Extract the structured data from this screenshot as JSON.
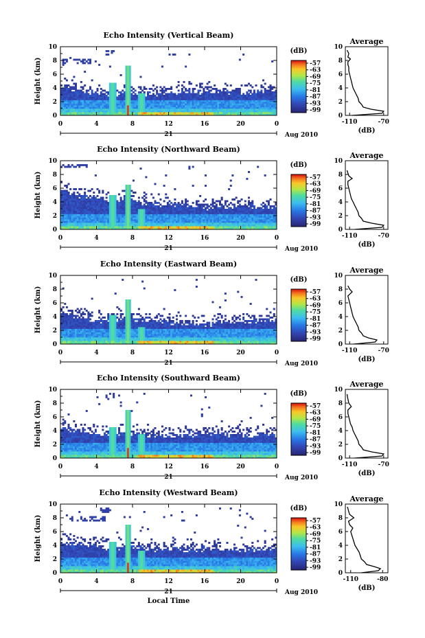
{
  "chart_data": [
    {
      "type": "heatmap",
      "title": "Echo Intensity (Vertical Beam)",
      "ylabel": "Height (km)",
      "ylim": [
        0,
        10
      ],
      "xlim": [
        0,
        24
      ],
      "x_ticks": [
        "0",
        "4",
        "8",
        "12",
        "16",
        "20",
        "0"
      ],
      "day_label": "21",
      "date_label": "Aug 2010",
      "colorbar": {
        "unit": "(dB)",
        "ticks": [
          "-57",
          "-63",
          "-69",
          "-75",
          "-81",
          "-87",
          "-93",
          "-99"
        ]
      },
      "features": {
        "tops": [
          4.2,
          4.0,
          3.8,
          3.5,
          3.3,
          3.1,
          3.0,
          3.4,
          3.3,
          3.2,
          3.1,
          3.2,
          3.3,
          3.3,
          3.4,
          3.5,
          3.5,
          3.5,
          3.5,
          3.5,
          3.4,
          3.4,
          3.4,
          3.5,
          3.5
        ],
        "spikes": [
          {
            "x": 5.8,
            "h": 4.8
          },
          {
            "x": 7.5,
            "h": 7.2
          },
          {
            "x": 9.0,
            "h": 3.3
          }
        ],
        "clouds": [
          [
            5,
            9.5,
            6,
            8.8
          ],
          [
            0,
            8.2,
            4,
            7.6
          ]
        ]
      },
      "profile": {
        "title": "Average",
        "xlabel": "(dB)",
        "x_ticks": [
          "-110",
          "-70"
        ],
        "xlim": [
          -115,
          -65
        ],
        "ylim": [
          0,
          10
        ],
        "points": [
          [
            -107,
            0
          ],
          [
            -72,
            0.3
          ],
          [
            -70,
            0.6
          ],
          [
            -85,
            0.9
          ],
          [
            -94,
            1.2
          ],
          [
            -96,
            1.6
          ],
          [
            -99,
            2.0
          ],
          [
            -100,
            2.5
          ],
          [
            -102,
            3.0
          ],
          [
            -104,
            3.5
          ],
          [
            -106,
            4.0
          ],
          [
            -107,
            4.5
          ],
          [
            -108,
            5.0
          ],
          [
            -109,
            5.5
          ],
          [
            -110,
            6.0
          ],
          [
            -111,
            6.5
          ],
          [
            -111,
            7.0
          ],
          [
            -112,
            7.4
          ],
          [
            -112,
            7.8
          ],
          [
            -109,
            8.2
          ],
          [
            -112,
            8.5
          ],
          [
            -111,
            9.0
          ],
          [
            -113,
            9.5
          ]
        ]
      }
    },
    {
      "type": "heatmap",
      "title": "Echo Intensity (Northward Beam)",
      "ylabel": "Height (km)",
      "ylim": [
        0,
        10
      ],
      "xlim": [
        0,
        24
      ],
      "x_ticks": [
        "0",
        "4",
        "8",
        "12",
        "16",
        "20",
        "0"
      ],
      "day_label": "21",
      "date_label": "Aug 2010",
      "colorbar": {
        "unit": "(dB)",
        "ticks": [
          "-57",
          "-63",
          "-69",
          "-75",
          "-81",
          "-87",
          "-93",
          "-99"
        ]
      },
      "features": {
        "tops": [
          5.8,
          5.3,
          5.0,
          4.8,
          4.6,
          4.2,
          4.0,
          4.5,
          4.3,
          4.0,
          3.8,
          3.7,
          3.6,
          3.5,
          3.5,
          3.4,
          3.3,
          3.2,
          3.2,
          3.3,
          3.4,
          3.4,
          3.3,
          3.3,
          3.4
        ],
        "spikes": [
          {
            "x": 5.8,
            "h": 5.0
          },
          {
            "x": 7.5,
            "h": 6.5
          },
          {
            "x": 9.0,
            "h": 3.0
          }
        ],
        "clouds": [
          [
            0,
            9.6,
            3,
            9.0
          ]
        ]
      },
      "profile": {
        "title": "Average",
        "xlabel": "(dB)",
        "x_ticks": [
          "-110",
          "-70"
        ],
        "xlim": [
          -115,
          -65
        ],
        "ylim": [
          0,
          10
        ],
        "points": [
          [
            -104,
            0
          ],
          [
            -72,
            0.3
          ],
          [
            -70,
            0.6
          ],
          [
            -84,
            0.9
          ],
          [
            -94,
            1.2
          ],
          [
            -96,
            1.6
          ],
          [
            -99,
            2.0
          ],
          [
            -100,
            2.5
          ],
          [
            -102,
            3.0
          ],
          [
            -104,
            3.5
          ],
          [
            -106,
            4.0
          ],
          [
            -108,
            4.5
          ],
          [
            -109,
            5.0
          ],
          [
            -110,
            5.5
          ],
          [
            -111,
            6.0
          ],
          [
            -112,
            6.5
          ],
          [
            -112,
            7.0
          ],
          [
            -107,
            7.4
          ],
          [
            -111,
            7.8
          ],
          [
            -112,
            8.2
          ],
          [
            -113,
            8.6
          ]
        ]
      }
    },
    {
      "type": "heatmap",
      "title": "Echo Intensity (Eastward Beam)",
      "ylabel": "Height (km)",
      "ylim": [
        0,
        10
      ],
      "xlim": [
        0,
        24
      ],
      "x_ticks": [
        "0",
        "4",
        "8",
        "12",
        "16",
        "20",
        "0"
      ],
      "day_label": "21",
      "date_label": "Aug 2010",
      "colorbar": {
        "unit": "(dB)",
        "ticks": [
          "-57",
          "-63",
          "-69",
          "-75",
          "-81",
          "-87",
          "-93",
          "-99"
        ]
      },
      "features": {
        "tops": [
          4.6,
          4.3,
          4.0,
          3.8,
          3.6,
          3.4,
          3.3,
          4.0,
          3.8,
          3.6,
          3.4,
          3.3,
          3.2,
          3.1,
          3.0,
          3.0,
          3.0,
          3.0,
          3.1,
          3.2,
          3.3,
          3.4,
          3.4,
          3.5,
          3.5
        ],
        "spikes": [
          {
            "x": 5.8,
            "h": 4.3
          },
          {
            "x": 7.5,
            "h": 6.5
          },
          {
            "x": 9.0,
            "h": 2.5
          }
        ],
        "clouds": []
      },
      "profile": {
        "title": "Average",
        "xlabel": "(dB)",
        "x_ticks": [
          "-110",
          "-70"
        ],
        "xlim": [
          -115,
          -65
        ],
        "ylim": [
          0,
          10
        ],
        "points": [
          [
            -105,
            0
          ],
          [
            -80,
            0.3
          ],
          [
            -78,
            0.6
          ],
          [
            -88,
            0.9
          ],
          [
            -94,
            1.2
          ],
          [
            -96,
            1.6
          ],
          [
            -99,
            2.0
          ],
          [
            -100,
            2.5
          ],
          [
            -102,
            3.0
          ],
          [
            -104,
            3.5
          ],
          [
            -106,
            4.0
          ],
          [
            -107,
            4.5
          ],
          [
            -108,
            5.0
          ],
          [
            -109,
            5.5
          ],
          [
            -110,
            6.0
          ],
          [
            -111,
            6.5
          ],
          [
            -112,
            7.0
          ],
          [
            -107,
            7.6
          ],
          [
            -110,
            8.0
          ],
          [
            -112,
            8.5
          ]
        ]
      }
    },
    {
      "type": "heatmap",
      "title": "Echo Intensity (Southward Beam)",
      "ylabel": "Height (km)",
      "ylim": [
        0,
        10
      ],
      "xlim": [
        0,
        24
      ],
      "x_ticks": [
        "0",
        "4",
        "8",
        "12",
        "16",
        "20",
        "0"
      ],
      "day_label": "21",
      "date_label": "Aug 2010",
      "colorbar": {
        "unit": "(dB)",
        "ticks": [
          "-57",
          "-63",
          "-69",
          "-75",
          "-81",
          "-87",
          "-93",
          "-99"
        ]
      },
      "features": {
        "tops": [
          4.3,
          4.2,
          4.0,
          3.8,
          3.6,
          3.4,
          3.3,
          3.8,
          3.6,
          3.4,
          3.3,
          3.2,
          3.3,
          3.4,
          3.5,
          3.5,
          3.6,
          3.6,
          3.5,
          3.4,
          3.4,
          3.3,
          3.4,
          3.5,
          3.5
        ],
        "spikes": [
          {
            "x": 5.8,
            "h": 4.5
          },
          {
            "x": 7.5,
            "h": 7.0
          },
          {
            "x": 9.0,
            "h": 3.5
          }
        ],
        "clouds": [
          [
            5,
            9.5,
            6,
            8.8
          ]
        ]
      },
      "profile": {
        "title": "Average",
        "xlabel": "(dB)",
        "x_ticks": [
          "-110",
          "-70"
        ],
        "xlim": [
          -115,
          -65
        ],
        "ylim": [
          0,
          10
        ],
        "points": [
          [
            -104,
            0
          ],
          [
            -72,
            0.3
          ],
          [
            -70,
            0.6
          ],
          [
            -84,
            0.9
          ],
          [
            -94,
            1.2
          ],
          [
            -96,
            1.6
          ],
          [
            -99,
            2.0
          ],
          [
            -100,
            2.5
          ],
          [
            -102,
            3.0
          ],
          [
            -104,
            3.5
          ],
          [
            -106,
            4.0
          ],
          [
            -107,
            4.5
          ],
          [
            -109,
            5.0
          ],
          [
            -110,
            5.5
          ],
          [
            -111,
            6.0
          ],
          [
            -112,
            6.5
          ],
          [
            -112,
            7.0
          ],
          [
            -108,
            7.5
          ],
          [
            -111,
            8.0
          ],
          [
            -112,
            8.6
          ],
          [
            -113,
            9.3
          ]
        ]
      }
    },
    {
      "type": "heatmap",
      "title": "Echo Intensity (Westward Beam)",
      "ylabel": "Height (km)",
      "ylim": [
        0,
        10
      ],
      "xlim": [
        0,
        24
      ],
      "x_ticks": [
        "0",
        "4",
        "8",
        "12",
        "16",
        "20",
        "0"
      ],
      "day_label": "21",
      "date_label": "Aug 2010",
      "xlabel": "Local Time",
      "colorbar": {
        "unit": "(dB)",
        "ticks": [
          "-57",
          "-63",
          "-69",
          "-75",
          "-81",
          "-87",
          "-93",
          "-99"
        ]
      },
      "features": {
        "tops": [
          4.5,
          4.4,
          4.2,
          4.0,
          3.8,
          3.6,
          3.5,
          4.0,
          3.8,
          3.6,
          3.4,
          3.3,
          3.3,
          3.3,
          3.4,
          3.4,
          3.5,
          3.4,
          3.3,
          3.3,
          3.4,
          3.4,
          3.4,
          3.5,
          3.5
        ],
        "spikes": [
          {
            "x": 5.8,
            "h": 4.5
          },
          {
            "x": 7.5,
            "h": 7.0
          },
          {
            "x": 9.0,
            "h": 3.2
          }
        ],
        "clouds": [
          [
            4.5,
            9.6,
            5.5,
            8.8
          ],
          [
            1,
            8.3,
            5,
            7.6
          ]
        ]
      },
      "profile": {
        "title": "Average",
        "xlabel": "(dB)",
        "x_ticks": [
          "-110",
          "-80"
        ],
        "xlim": [
          -115,
          -75
        ],
        "ylim": [
          0,
          10
        ],
        "points": [
          [
            -100,
            0
          ],
          [
            -84,
            0.3
          ],
          [
            -82,
            0.6
          ],
          [
            -88,
            0.9
          ],
          [
            -95,
            1.2
          ],
          [
            -97,
            1.6
          ],
          [
            -100,
            2.0
          ],
          [
            -101,
            2.5
          ],
          [
            -102,
            3.0
          ],
          [
            -104,
            3.5
          ],
          [
            -106,
            4.0
          ],
          [
            -107,
            4.5
          ],
          [
            -108,
            5.0
          ],
          [
            -109,
            5.5
          ],
          [
            -110,
            6.0
          ],
          [
            -108,
            6.5
          ],
          [
            -111,
            7.0
          ],
          [
            -112,
            7.5
          ],
          [
            -107,
            8.0
          ],
          [
            -111,
            8.5
          ],
          [
            -112,
            9.0
          ],
          [
            -113,
            9.6
          ]
        ]
      }
    }
  ]
}
